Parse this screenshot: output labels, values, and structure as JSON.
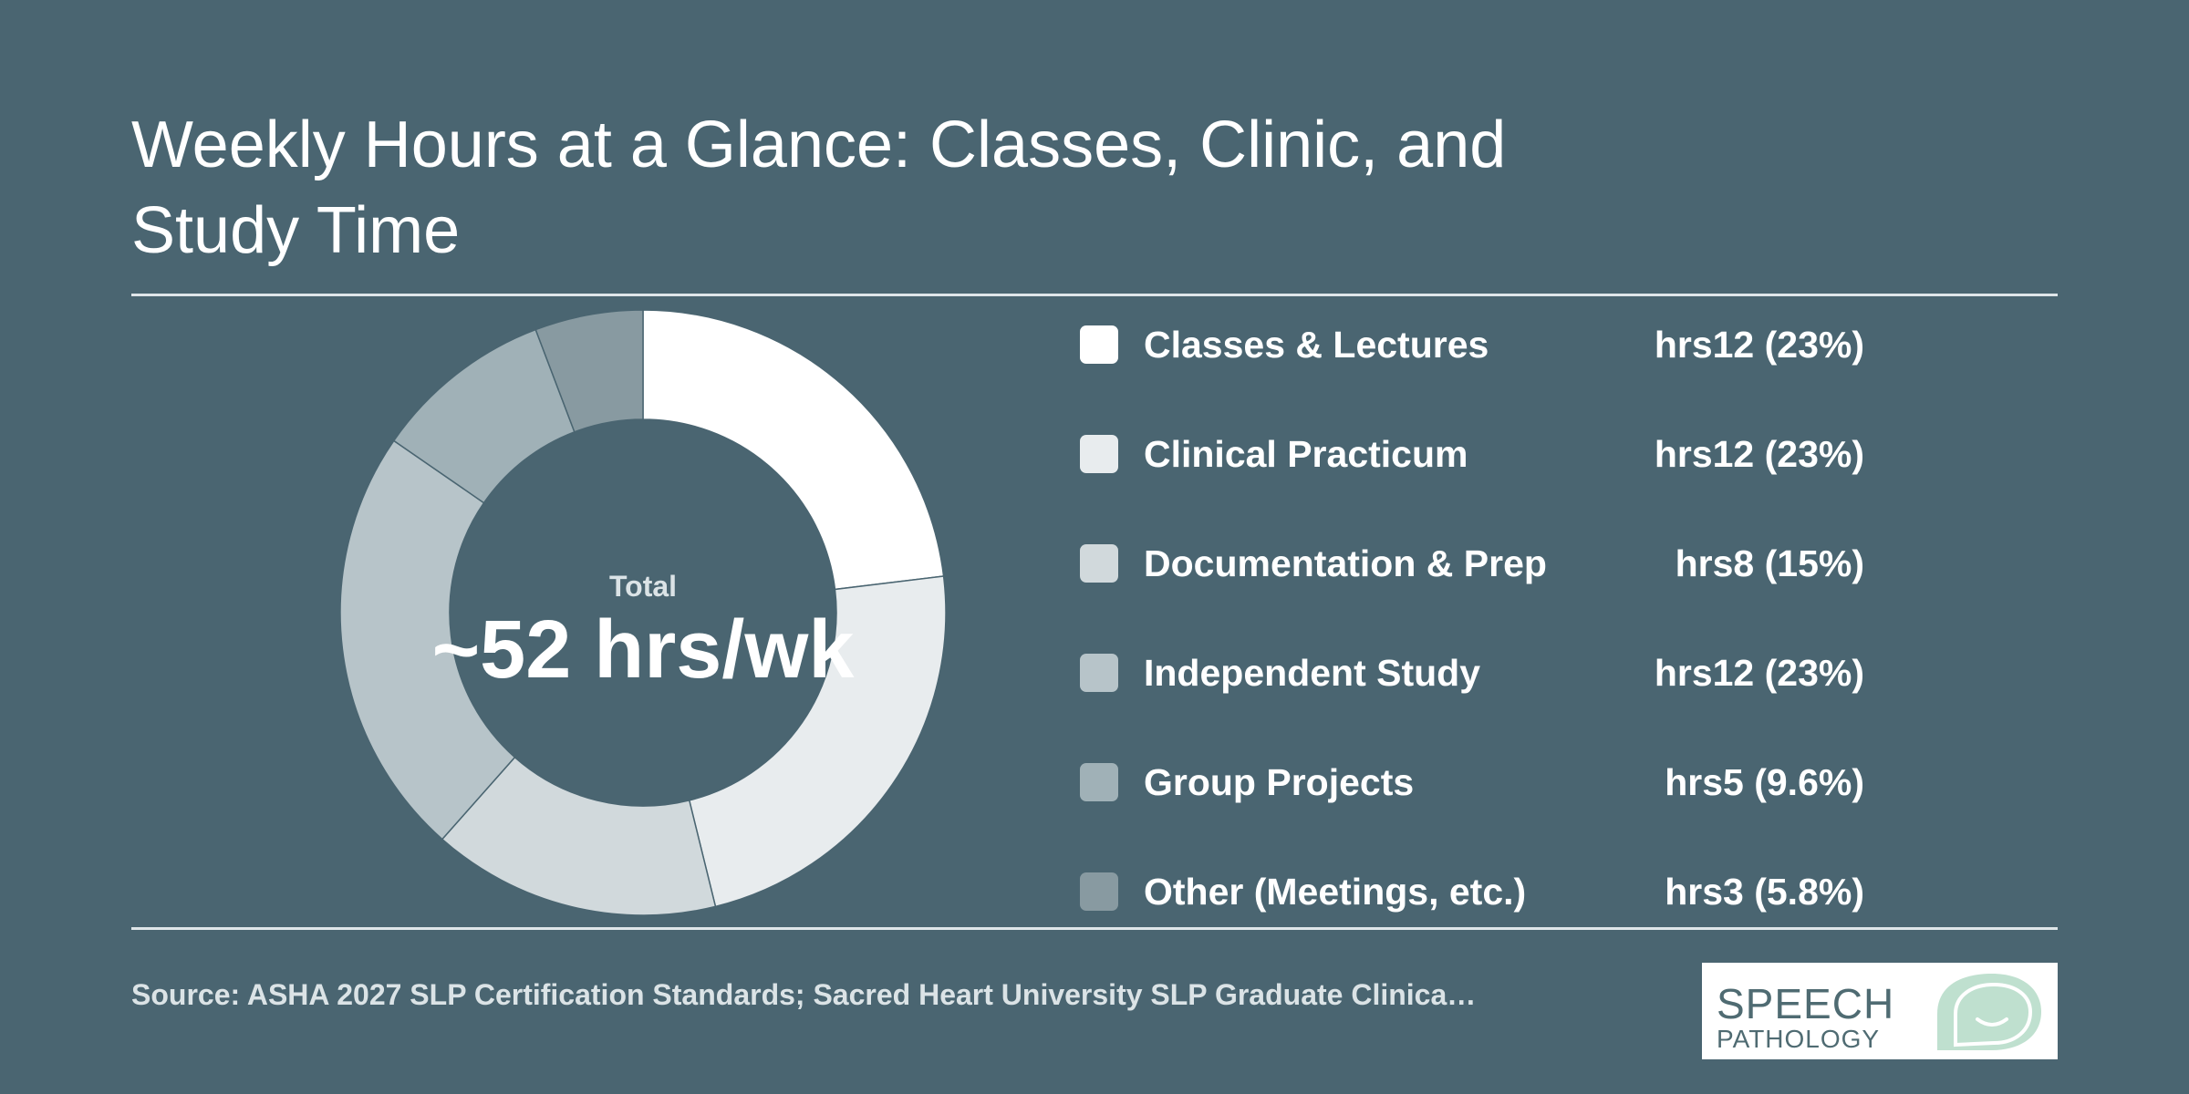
{
  "header": {
    "title": "Weekly Hours at a Glance: Classes, Clinic, and Study Time"
  },
  "center": {
    "label": "Total",
    "value": "~52 hrs/wk"
  },
  "footer": {
    "source": "Source: ASHA 2027 SLP Certification Standards; Sacred Heart University SLP Graduate Clinica…",
    "logo_line1": "SPEECH",
    "logo_line2": "PATHOLOGY"
  },
  "chart_data": {
    "type": "pie",
    "variant": "donut",
    "categories": [
      "Classes & Lectures",
      "Clinical Practicum",
      "Documentation & Prep",
      "Independent Study",
      "Group Projects",
      "Other (Meetings, etc.)"
    ],
    "values": [
      12,
      12,
      8,
      12,
      5,
      3
    ],
    "value_labels": [
      "hrs12 (23%)",
      "hrs12 (23%)",
      "hrs8 (15%)",
      "hrs12 (23%)",
      "hrs5 (9.6%)",
      "hrs3 (5.8%)"
    ],
    "colors": [
      "#ffffff",
      "#e8ecee",
      "#d1d9dc",
      "#b7c4c9",
      "#a0b1b7",
      "#889aa1"
    ],
    "legend_placement": "right"
  }
}
